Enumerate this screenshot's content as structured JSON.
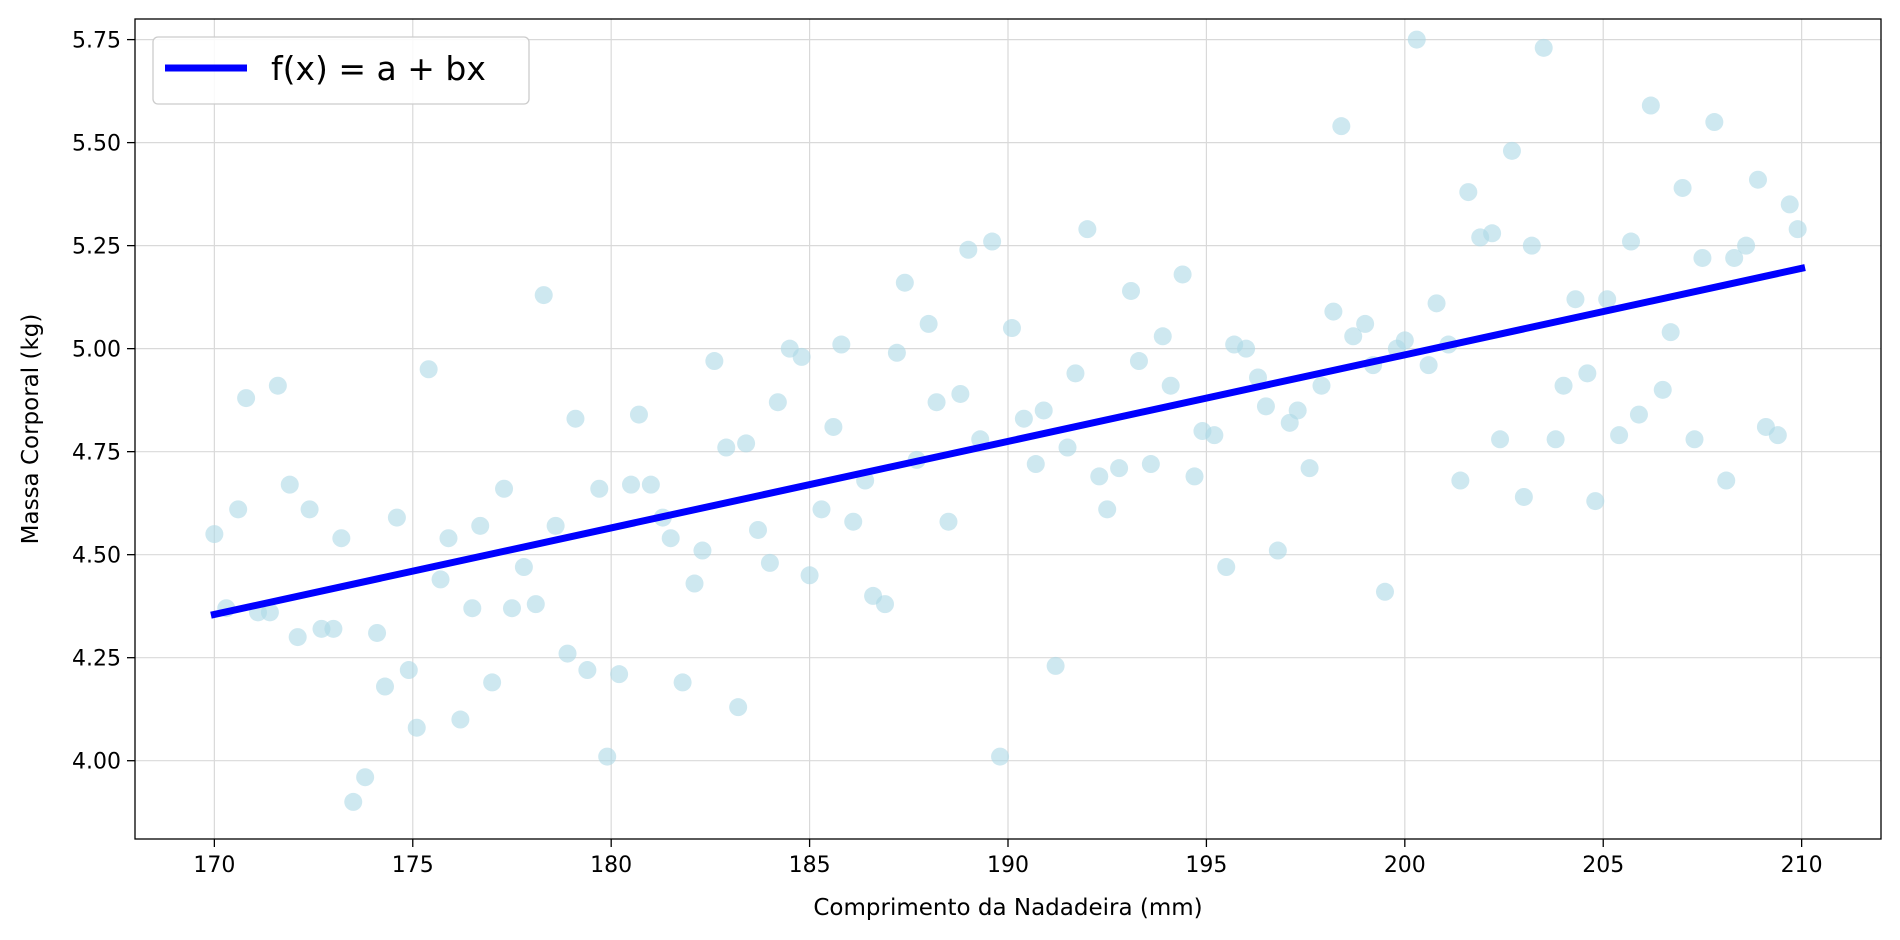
{
  "chart_data": {
    "type": "scatter",
    "title": "",
    "xlabel": "Comprimento da Nadadeira (mm)",
    "ylabel": "Massa Corporal (kg)",
    "xlim": [
      168,
      212
    ],
    "ylim": [
      3.81,
      5.8
    ],
    "x_ticks": [
      170,
      175,
      180,
      185,
      190,
      195,
      200,
      205,
      210
    ],
    "x_tick_labels": [
      "170",
      "175",
      "180",
      "185",
      "190",
      "195",
      "200",
      "205",
      "210"
    ],
    "y_ticks": [
      4.0,
      4.25,
      4.5,
      4.75,
      5.0,
      5.25,
      5.5,
      5.75
    ],
    "y_tick_labels": [
      "4.00",
      "4.25",
      "4.50",
      "4.75",
      "5.00",
      "5.25",
      "5.50",
      "5.75"
    ],
    "grid": true,
    "legend": {
      "position": "top-left",
      "entries": [
        "f(x) = a + bx"
      ]
    },
    "colors": {
      "points": "#add8e6",
      "line": "#0000ff"
    },
    "series": [
      {
        "kind": "scatter",
        "x": [
          170.0,
          170.3,
          170.6,
          170.8,
          171.1,
          171.4,
          171.6,
          171.9,
          172.1,
          172.4,
          172.7,
          173.0,
          173.2,
          173.5,
          173.8,
          174.1,
          174.3,
          174.6,
          174.9,
          175.1,
          175.4,
          175.7,
          175.9,
          176.2,
          176.5,
          176.7,
          177.0,
          177.3,
          177.5,
          177.8,
          178.1,
          178.3,
          178.6,
          178.9,
          179.1,
          179.4,
          179.7,
          179.9,
          180.2,
          180.5,
          180.7,
          181.0,
          181.3,
          181.5,
          181.8,
          182.1,
          182.3,
          182.6,
          182.9,
          183.2,
          183.4,
          183.7,
          184.0,
          184.2,
          184.5,
          184.8,
          185.0,
          185.3,
          185.6,
          185.8,
          186.1,
          186.4,
          186.6,
          186.9,
          187.2,
          187.4,
          187.7,
          188.0,
          188.2,
          188.5,
          188.8,
          189.0,
          189.3,
          189.6,
          189.8,
          190.1,
          190.4,
          190.7,
          190.9,
          191.2,
          191.5,
          191.7,
          192.0,
          192.3,
          192.5,
          192.8,
          193.1,
          193.3,
          193.6,
          193.9,
          194.1,
          194.4,
          194.7,
          194.9,
          195.2,
          195.5,
          195.7,
          196.0,
          196.3,
          196.5,
          196.8,
          197.1,
          197.3,
          197.6,
          197.9,
          198.2,
          198.4,
          198.7,
          199.0,
          199.2,
          199.5,
          199.8,
          200.0,
          200.3,
          200.6,
          200.8,
          201.1,
          201.4,
          201.6,
          201.9,
          202.2,
          202.4,
          202.7,
          203.0,
          203.2,
          203.5,
          203.8,
          204.0,
          204.3,
          204.6,
          204.8,
          205.1,
          205.4,
          205.7,
          205.9,
          206.2,
          206.5,
          206.7,
          207.0,
          207.3,
          207.5,
          207.8,
          208.1,
          208.3,
          208.6,
          208.9,
          209.1,
          209.4,
          209.7,
          209.9
        ],
        "y": [
          4.55,
          4.37,
          4.61,
          4.88,
          4.36,
          4.36,
          4.91,
          4.67,
          4.3,
          4.61,
          4.32,
          4.32,
          4.54,
          3.9,
          3.96,
          4.31,
          4.18,
          4.59,
          4.22,
          4.08,
          4.95,
          4.44,
          4.54,
          4.1,
          4.37,
          4.57,
          4.19,
          4.66,
          4.37,
          4.47,
          4.38,
          5.13,
          4.57,
          4.26,
          4.83,
          4.22,
          4.66,
          4.01,
          4.21,
          4.67,
          4.84,
          4.67,
          4.59,
          4.54,
          4.19,
          4.43,
          4.51,
          4.97,
          4.76,
          4.13,
          4.77,
          4.56,
          4.48,
          4.87,
          5.0,
          4.98,
          4.45,
          4.61,
          4.81,
          5.01,
          4.58,
          4.68,
          4.4,
          4.38,
          4.99,
          5.16,
          4.73,
          5.06,
          4.87,
          4.58,
          4.89,
          5.24,
          4.78,
          5.26,
          4.01,
          5.05,
          4.83,
          4.72,
          4.85,
          4.23,
          4.76,
          4.94,
          5.29,
          4.69,
          4.61,
          4.71,
          5.14,
          4.97,
          4.72,
          5.03,
          4.91,
          5.18,
          4.69,
          4.8,
          4.79,
          4.47,
          5.01,
          5.0,
          4.93,
          4.86,
          4.51,
          4.82,
          4.85,
          4.71,
          4.91,
          5.09,
          5.54,
          5.03,
          5.06,
          4.96,
          4.41,
          5.0,
          5.02,
          5.75,
          4.96,
          5.11,
          5.01,
          4.68,
          5.38,
          5.27,
          5.28,
          4.78,
          5.48,
          4.64,
          5.25,
          5.73,
          4.78,
          4.91,
          5.12,
          4.94,
          4.63,
          5.12,
          4.79,
          5.26,
          4.84,
          5.59,
          4.9,
          5.04,
          5.39,
          4.78,
          5.22,
          5.55,
          4.68,
          5.22,
          5.25,
          5.41,
          4.81,
          4.79,
          5.35,
          5.29
        ]
      },
      {
        "kind": "line",
        "name": "f(x) = a + bx",
        "x": [
          170,
          210
        ],
        "y": [
          4.355,
          5.195
        ]
      }
    ]
  }
}
